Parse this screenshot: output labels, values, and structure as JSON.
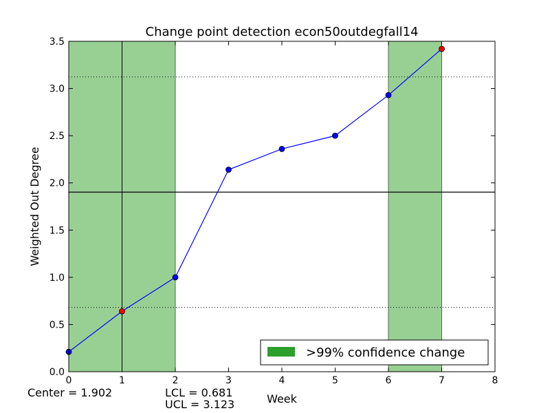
{
  "chart_data": {
    "type": "line",
    "title": "Change point detection econ50outdegfall14",
    "xlabel": "Week",
    "ylabel": "Weighted Out Degree",
    "xlim": [
      0,
      8
    ],
    "ylim": [
      0,
      3.5
    ],
    "x_ticks": [
      "0",
      "1",
      "2",
      "3",
      "4",
      "5",
      "6",
      "7",
      "8"
    ],
    "y_ticks": [
      "0.0",
      "0.5",
      "1.0",
      "1.5",
      "2.0",
      "2.5",
      "3.0",
      "3.5"
    ],
    "grid": false,
    "series": [
      {
        "x": [
          0,
          1,
          2,
          3,
          4,
          5,
          6,
          7
        ],
        "y": [
          0.21,
          0.64,
          1.0,
          2.14,
          2.36,
          2.5,
          2.93,
          3.42
        ],
        "color": "#0000ff",
        "change_points": [
          1,
          7
        ],
        "change_point_color": "#ff0000"
      }
    ],
    "center_line": 1.902,
    "lcl": 0.681,
    "ucl": 3.123,
    "vertical_lines": [
      1
    ],
    "shaded_regions": [
      [
        0,
        2
      ],
      [
        6,
        7
      ]
    ],
    "shade_color": "#98d094",
    "legend": {
      "position": "lower-right",
      "label": ">99% confidence change",
      "swatch_color": "#2ca02c"
    },
    "footnotes": {
      "center": "Center = 1.902",
      "lcl": "LCL = 0.681",
      "ucl": "UCL = 3.123"
    }
  }
}
